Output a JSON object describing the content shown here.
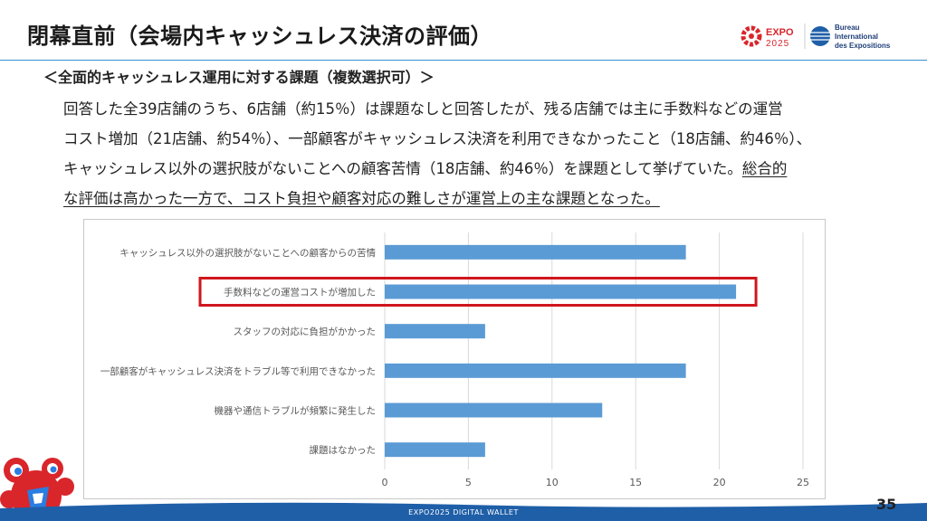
{
  "header": {
    "title": "閉幕直前（会場内キャッシュレス決済の評価）",
    "logo_expo_text": "EXPO",
    "logo_expo_year": "2025",
    "logo_bie_lines": [
      "Bureau",
      "International",
      "des Expositions"
    ]
  },
  "subtitle": "＜全面的キャッシュレス運用に対する課題（複数選択可）＞",
  "body": {
    "line1": "回答した全39店舗のうち、6店舗（約15％）は課題なしと回答したが、残る店舗では主に手数料などの運営",
    "line2": "コスト増加（21店舗、約54％）、一部顧客がキャッシュレス決済を利用できなかったこと（18店舗、約46％）、",
    "line3_plain": "キャッシュレス以外の選択肢がないことへの顧客苦情（18店舗、約46％）を課題として挙げていた。",
    "line3_underlined": "総合的",
    "line4_underlined": "な評価は高かった一方で、コスト負担や顧客対応の難しさが運営上の主な課題となった。"
  },
  "chart_data": {
    "type": "bar",
    "orientation": "horizontal",
    "categories": [
      "キャッシュレス以外の選択肢がないことへの顧客からの苦情",
      "手数料などの運営コストが増加した",
      "スタッフの対応に負担がかかった",
      "一部顧客がキャッシュレス決済をトラブル等で利用できなかった",
      "機器や通信トラブルが頻繁に発生した",
      "課題はなかった"
    ],
    "values": [
      18,
      21,
      6,
      18,
      13,
      6
    ],
    "xlim": [
      0,
      25
    ],
    "xticks": [
      "0",
      "5",
      "10",
      "15",
      "20",
      "25"
    ],
    "grid": true,
    "highlighted_category_index": 1,
    "bar_color": "#5b9bd5",
    "highlight_color": "#d0161d"
  },
  "footer": {
    "text": "EXPO2025 DIGITAL WALLET",
    "page_number": "35"
  },
  "colors": {
    "accent_line": "#3a8fd0",
    "footer_blue": "#1f5fa8",
    "mascot_red": "#d9262b",
    "mascot_blue": "#2a7de1"
  }
}
